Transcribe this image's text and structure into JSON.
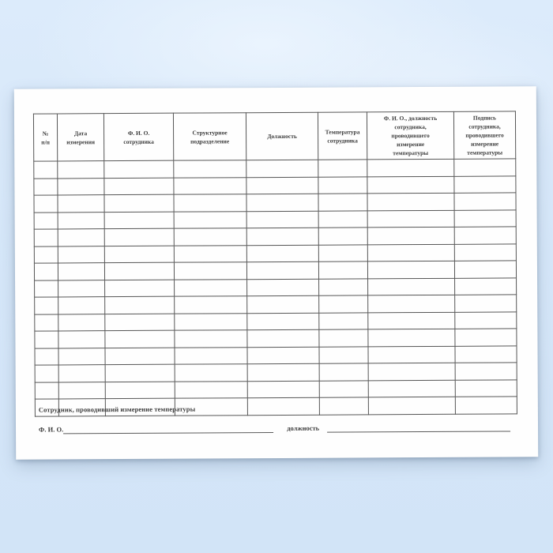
{
  "page": {
    "background_color": "#d6e7f9",
    "paper_color": "#fefefe",
    "border_color": "#565656",
    "text_color": "#3d3d3d"
  },
  "document": {
    "table": {
      "headers": [
        "№\nп/п",
        "Дата\nизмерения",
        "Ф. И. О.\nсотрудника",
        "Структурное\nподразделение",
        "Должность",
        "Температура\nсотрудника",
        "Ф. И. О., должность\nсотрудника,\nпроводившего\nизмерение\nтемпературы",
        "Подпись\nсотрудника,\nпроводившего\nизмерение\nтемпературы"
      ],
      "row_count": 15,
      "cell_value": ""
    },
    "footer": {
      "note": "Сотрудник, проводивший измерение температуры",
      "fio_label": "Ф. И. О.",
      "position_label": "должность"
    }
  }
}
